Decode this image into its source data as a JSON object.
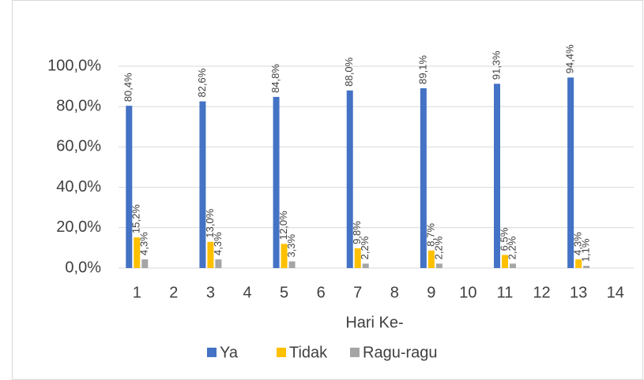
{
  "chart_data": {
    "type": "bar",
    "x_label": "Hari Ke-",
    "categories": [
      "1",
      "2",
      "3",
      "4",
      "5",
      "6",
      "7",
      "8",
      "9",
      "10",
      "11",
      "12",
      "13",
      "14"
    ],
    "series": [
      {
        "name": "Ya",
        "color": "#4472c4",
        "values": [
          80.4,
          null,
          82.6,
          null,
          84.8,
          null,
          88.0,
          null,
          89.1,
          null,
          91.3,
          null,
          94.4,
          null
        ],
        "value_labels": [
          "80,4%",
          null,
          "82,6%",
          null,
          "84,8%",
          null,
          "88,0%",
          null,
          "89,1%",
          null,
          "91,3%",
          null,
          "94,4%",
          null
        ]
      },
      {
        "name": "Tidak",
        "color": "#ffc000",
        "values": [
          15.2,
          null,
          13.0,
          null,
          12.0,
          null,
          9.8,
          null,
          8.7,
          null,
          6.5,
          null,
          4.3,
          null
        ],
        "value_labels": [
          "15,2%",
          null,
          "13,0%",
          null,
          "12,0%",
          null,
          "9,8%",
          null,
          "8,7%",
          null,
          "6,5%",
          null,
          "4,3%",
          null
        ]
      },
      {
        "name": "Ragu-ragu",
        "color": "#a5a5a5",
        "values": [
          4.3,
          null,
          4.3,
          null,
          3.3,
          null,
          2.2,
          null,
          2.2,
          null,
          2.2,
          null,
          1.1,
          null
        ],
        "value_labels": [
          "4,3%",
          null,
          "4,3%",
          null,
          "3,3%",
          null,
          "2,2%",
          null,
          "2,2%",
          null,
          "2,2%",
          null,
          "1,1%",
          null
        ]
      }
    ],
    "ylim": [
      0,
      100
    ],
    "yticks": [
      {
        "value": 0,
        "label": "0,0%"
      },
      {
        "value": 20,
        "label": "20,0%"
      },
      {
        "value": 40,
        "label": "40,0%"
      },
      {
        "value": 60,
        "label": "60,0%"
      },
      {
        "value": 80,
        "label": "80,0%"
      },
      {
        "value": 100,
        "label": "100,0%"
      }
    ],
    "grid": true,
    "legend": "bottom"
  }
}
